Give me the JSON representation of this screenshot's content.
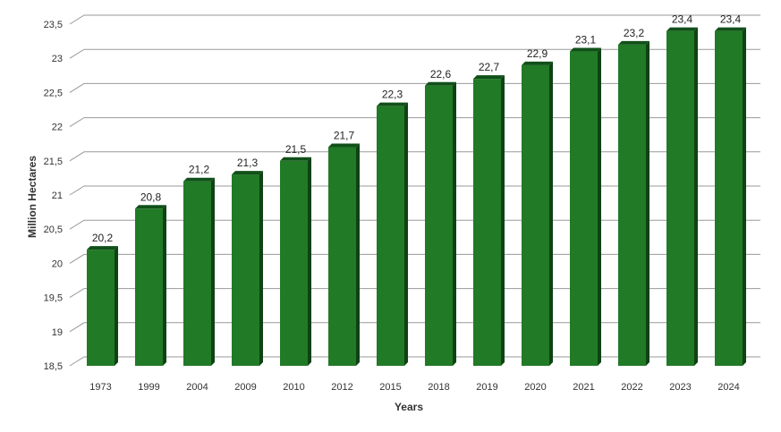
{
  "chart_data": {
    "type": "bar",
    "categories": [
      "1973",
      "1999",
      "2004",
      "2009",
      "2010",
      "2012",
      "2015",
      "2018",
      "2019",
      "2020",
      "2021",
      "2022",
      "2023",
      "2024"
    ],
    "values": [
      20.2,
      20.8,
      21.2,
      21.3,
      21.5,
      21.7,
      22.3,
      22.6,
      22.7,
      22.9,
      23.1,
      23.2,
      23.4,
      23.4
    ],
    "data_labels": [
      "20,2",
      "20,8",
      "21,2",
      "21,3",
      "21,5",
      "21,7",
      "22,3",
      "22,6",
      "22,7",
      "22,9",
      "23,1",
      "23,2",
      "23,4",
      "23,4"
    ],
    "xlabel": "Years",
    "ylabel": "Million Hectares",
    "ylim": [
      18.5,
      23.5
    ],
    "yticks": [
      18.5,
      19,
      19.5,
      20,
      20.5,
      21,
      21.5,
      22,
      22.5,
      23,
      23.5
    ],
    "ytick_labels": [
      "18,5",
      "19",
      "19,5",
      "20",
      "20,5",
      "21",
      "21,5",
      "22",
      "22,5",
      "23",
      "23,5"
    ],
    "grid": true,
    "bar_style": "3d",
    "colors": {
      "bar_front": "#217a26",
      "bar_top": "#11501a",
      "bar_side": "#0f4214",
      "grid": "#9a9a9a"
    }
  }
}
